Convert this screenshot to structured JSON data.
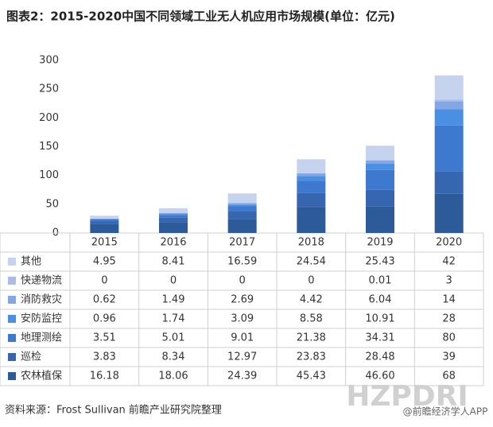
{
  "chart_data": {
    "type": "stacked-bar",
    "title": "图表2：2015-2020中国不同领域工业无人机应用市场规模(单位：亿元)",
    "categories": [
      "2015",
      "2016",
      "2017",
      "2018",
      "2019",
      "2020"
    ],
    "series": [
      {
        "name": "其他",
        "color": "#c6d3ee",
        "values": [
          4.95,
          8.41,
          16.59,
          24.54,
          25.43,
          42
        ]
      },
      {
        "name": "快递物流",
        "color": "#a9bde8",
        "values": [
          0,
          0,
          0,
          0,
          0.01,
          3
        ]
      },
      {
        "name": "消防救灾",
        "color": "#84a6e4",
        "values": [
          0.62,
          1.49,
          2.69,
          4.42,
          6.04,
          14
        ]
      },
      {
        "name": "安防监控",
        "color": "#4b8fe2",
        "values": [
          0.96,
          1.74,
          3.09,
          8.58,
          10.91,
          28
        ]
      },
      {
        "name": "地理测绘",
        "color": "#3d79cf",
        "values": [
          3.51,
          5.01,
          9.01,
          21.38,
          34.31,
          80
        ]
      },
      {
        "name": "巡检",
        "color": "#3766b0",
        "values": [
          3.83,
          8.34,
          12.97,
          23.83,
          28.48,
          39
        ]
      },
      {
        "name": "农林植保",
        "color": "#2d5a99",
        "values": [
          16.18,
          18.06,
          24.39,
          45.43,
          46.6,
          68
        ],
        "value_labels": [
          "16.18",
          "18.06",
          "24.39",
          "45.43",
          "46.60",
          "68"
        ]
      }
    ],
    "ylim": [
      0,
      300
    ],
    "yticks": [
      0,
      50,
      100,
      150,
      200,
      250,
      300
    ],
    "source": "资料来源：Frost Sullivan 前瞻产业研究院整理",
    "watermark": "HZPDRI",
    "app_label": "@前瞻经济学人APP"
  }
}
